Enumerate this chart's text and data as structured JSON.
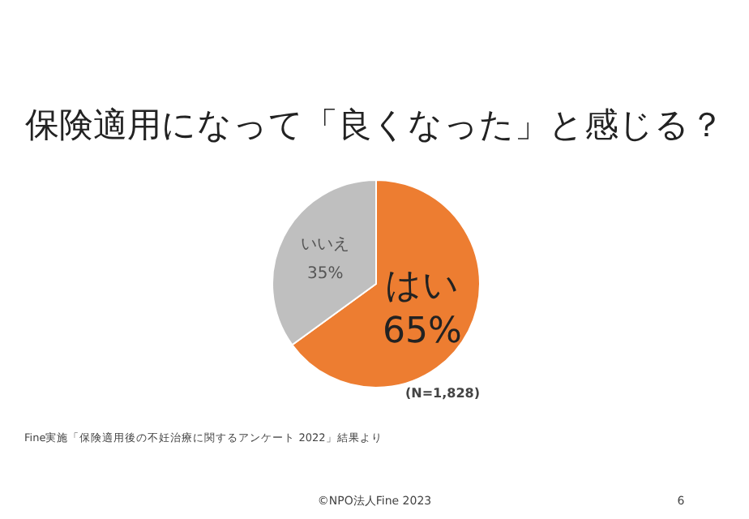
{
  "chart_data": {
    "type": "pie",
    "title": "保険適用になって「良くなった」と感じる？",
    "categories": [
      "はい",
      "いいえ"
    ],
    "values": [
      65,
      35
    ],
    "value_labels": [
      "65%",
      "35%"
    ],
    "colors": [
      "#ed7d31",
      "#bfbfbf"
    ],
    "annotations": [
      "(N=1,828)",
      "Fine実施「保険適用後の不妊治療に関するアンケート 2022」結果より",
      "©NPO法人Fine 2023",
      "6"
    ]
  }
}
